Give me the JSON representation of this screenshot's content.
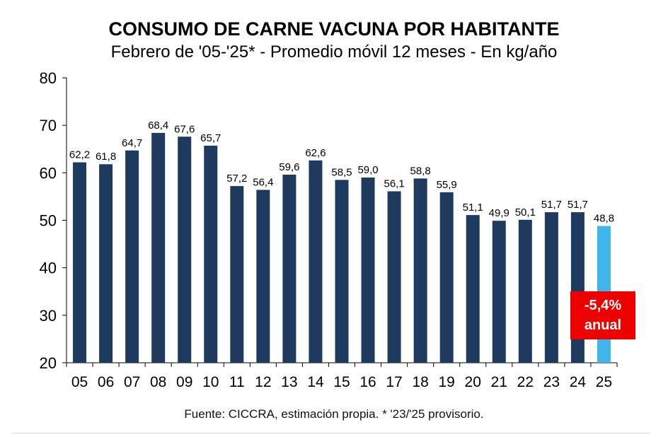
{
  "chart_data": {
    "type": "bar",
    "title": "CONSUMO DE CARNE VACUNA POR HABITANTE",
    "subtitle": "Febrero de '05-'25* - Promedio móvil 12 meses -  En kg/año",
    "categories": [
      "05",
      "06",
      "07",
      "08",
      "09",
      "10",
      "11",
      "12",
      "13",
      "14",
      "15",
      "16",
      "17",
      "18",
      "19",
      "20",
      "21",
      "22",
      "23",
      "24",
      "25"
    ],
    "values": [
      62.2,
      61.8,
      64.7,
      68.4,
      67.6,
      65.7,
      57.2,
      56.4,
      59.6,
      62.6,
      58.5,
      59.0,
      56.1,
      58.8,
      55.9,
      51.1,
      49.9,
      50.1,
      51.7,
      51.7,
      48.8
    ],
    "value_labels": [
      "62,2",
      "61,8",
      "64,7",
      "68,4",
      "67,6",
      "65,7",
      "57,2",
      "56,4",
      "59,6",
      "62,6",
      "58,5",
      "59,0",
      "56,1",
      "58,8",
      "55,9",
      "51,1",
      "49,9",
      "50,1",
      "51,7",
      "51,7",
      "48,8"
    ],
    "ylim": [
      20,
      80
    ],
    "yticks": [
      20,
      30,
      40,
      50,
      60,
      70,
      80
    ],
    "xlabel": "",
    "ylabel": "",
    "grid": false,
    "colors": {
      "bar": "#1f3a5f",
      "highlight": "#3fb6ea"
    },
    "highlight_index": 20,
    "annotation": {
      "line1": "-5,4%",
      "line2": "anual",
      "color": "#ee0000"
    }
  },
  "footer": "Fuente: CICCRA, estimación propia. * '23/'25 provisorio."
}
